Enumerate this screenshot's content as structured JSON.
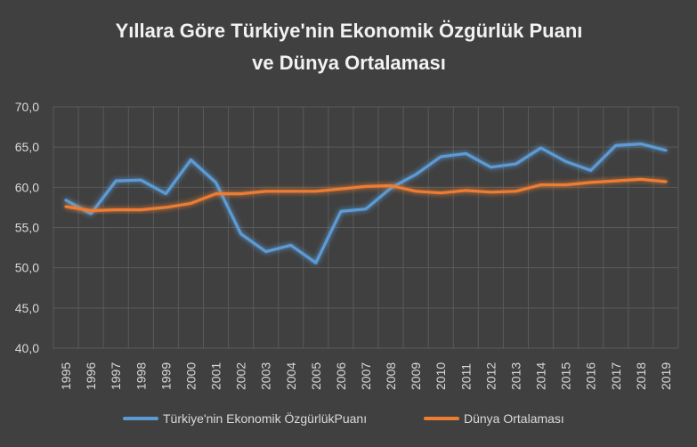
{
  "chart_data": {
    "type": "line",
    "title_lines": [
      "Yıllara Göre Türkiye'nin Ekonomik Özgürlük Puanı",
      "ve Dünya Ortalaması"
    ],
    "x": [
      "1995",
      "1996",
      "1997",
      "1998",
      "1999",
      "2000",
      "2001",
      "2002",
      "2003",
      "2004",
      "2005",
      "2006",
      "2007",
      "2008",
      "2009",
      "2010",
      "2011",
      "2012",
      "2013",
      "2014",
      "2015",
      "2016",
      "2017",
      "2018",
      "2019"
    ],
    "ylim": [
      40,
      70
    ],
    "yticks": [
      "40,0",
      "45,0",
      "50,0",
      "55,0",
      "60,0",
      "65,0",
      "70,0"
    ],
    "grid": true,
    "legend_position": "bottom",
    "series": [
      {
        "name": "Türkiye'nin Ekonomik ÖzgürlükPuanı",
        "color": "#5b9bd5",
        "values": [
          58.4,
          56.7,
          60.8,
          60.9,
          59.2,
          63.4,
          60.6,
          54.2,
          52.0,
          52.8,
          50.6,
          57.0,
          57.3,
          59.9,
          61.6,
          63.8,
          64.2,
          62.5,
          62.9,
          64.9,
          63.2,
          62.1,
          65.2,
          65.4,
          64.6
        ]
      },
      {
        "name": "Dünya Ortalaması",
        "color": "#ed7d31",
        "values": [
          57.6,
          57.1,
          57.2,
          57.2,
          57.5,
          58.0,
          59.2,
          59.2,
          59.5,
          59.5,
          59.5,
          59.8,
          60.1,
          60.2,
          59.5,
          59.3,
          59.6,
          59.4,
          59.5,
          60.3,
          60.3,
          60.6,
          60.8,
          61.0,
          60.7
        ]
      }
    ]
  }
}
